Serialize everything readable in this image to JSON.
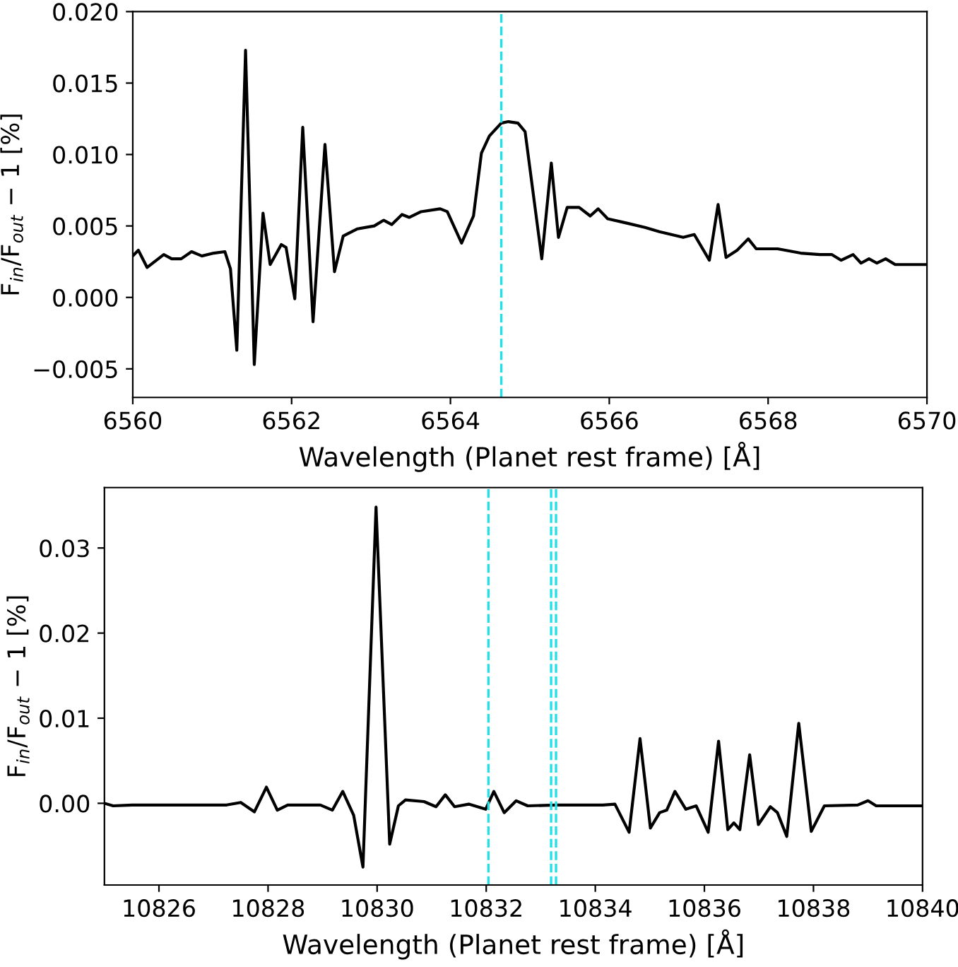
{
  "chart_data": [
    {
      "type": "line",
      "xlabel": "Wavelength (Planet rest frame) [Å]",
      "ylabel": "F$_{in}$/F$_{out}$ − 1 [%]",
      "x": [
        6560.0,
        6560.07,
        6560.18,
        6560.39,
        6560.49,
        6560.61,
        6560.74,
        6560.87,
        6561.02,
        6561.16,
        6561.23,
        6561.31,
        6561.42,
        6561.53,
        6561.64,
        6561.73,
        6561.87,
        6561.93,
        6562.04,
        6562.14,
        6562.27,
        6562.42,
        6562.54,
        6562.65,
        6562.83,
        6563.04,
        6563.16,
        6563.26,
        6563.39,
        6563.48,
        6563.63,
        6563.87,
        6563.96,
        6564.14,
        6564.29,
        6564.39,
        6564.49,
        6564.64,
        6564.73,
        6564.85,
        6564.94,
        6565.15,
        6565.27,
        6565.36,
        6565.47,
        6565.62,
        6565.76,
        6565.86,
        6565.98,
        6566.22,
        6566.45,
        6566.63,
        6566.93,
        6567.07,
        6567.26,
        6567.37,
        6567.47,
        6567.61,
        6567.75,
        6567.85,
        6568.12,
        6568.41,
        6568.65,
        6568.8,
        6568.92,
        6569.07,
        6569.17,
        6569.27,
        6569.37,
        6569.48,
        6569.6,
        6570.0
      ],
      "series": [
        {
          "color": "#000000",
          "values": [
            0.0029,
            0.0033,
            0.0021,
            0.003,
            0.0027,
            0.0027,
            0.0032,
            0.0029,
            0.0031,
            0.0032,
            0.002,
            -0.0037,
            0.0173,
            -0.0047,
            0.0059,
            0.0023,
            0.0037,
            0.0035,
            -0.0001,
            0.0119,
            -0.0017,
            0.0107,
            0.0018,
            0.0043,
            0.0048,
            0.005,
            0.0054,
            0.0051,
            0.0058,
            0.0056,
            0.006,
            0.0062,
            0.006,
            0.0038,
            0.0057,
            0.0101,
            0.0113,
            0.0122,
            0.0123,
            0.0122,
            0.0116,
            0.0027,
            0.0094,
            0.0042,
            0.0063,
            0.0063,
            0.0057,
            0.0062,
            0.0055,
            0.0052,
            0.0049,
            0.0046,
            0.0042,
            0.0044,
            0.0026,
            0.0065,
            0.0028,
            0.0033,
            0.0041,
            0.0034,
            0.0034,
            0.0031,
            0.003,
            0.003,
            0.0026,
            0.003,
            0.0024,
            0.0027,
            0.0024,
            0.0027,
            0.0023,
            0.0023
          ]
        }
      ],
      "xlim": [
        6560,
        6570
      ],
      "xticks": [
        6560,
        6562,
        6564,
        6566,
        6568,
        6570
      ],
      "ylim": [
        -0.007,
        0.02
      ],
      "yticks": [
        {
          "value": -0.005,
          "label": "−0.005"
        },
        {
          "value": 0,
          "label": "0.000"
        },
        {
          "value": 0.005,
          "label": "0.005"
        },
        {
          "value": 0.01,
          "label": "0.010"
        },
        {
          "value": 0.015,
          "label": "0.015"
        },
        {
          "value": 0.02,
          "label": "0.020"
        }
      ],
      "ref_lines": [
        {
          "axis": "x",
          "value": 6564.64,
          "color": "#22e0e8",
          "line_style": "dashed"
        }
      ],
      "grid": false,
      "legend": false
    },
    {
      "type": "line",
      "xlabel": "Wavelength (Planet rest frame) [Å]",
      "ylabel": "F$_{in}$/F$_{out}$ − 1 [%]",
      "x": [
        10825.0,
        10825.16,
        10825.51,
        10826.37,
        10827.24,
        10827.5,
        10827.75,
        10827.97,
        10828.17,
        10828.36,
        10828.96,
        10829.18,
        10829.37,
        10829.57,
        10829.74,
        10829.98,
        10830.23,
        10830.39,
        10830.52,
        10830.86,
        10831.08,
        10831.25,
        10831.42,
        10831.68,
        10831.99,
        10832.14,
        10832.33,
        10832.55,
        10832.76,
        10833.28,
        10834.14,
        10834.36,
        10834.62,
        10834.82,
        10835.01,
        10835.18,
        10835.31,
        10835.46,
        10835.66,
        10835.85,
        10836.07,
        10836.26,
        10836.43,
        10836.54,
        10836.65,
        10836.83,
        10836.99,
        10837.21,
        10837.34,
        10837.51,
        10837.73,
        10837.96,
        10838.2,
        10838.81,
        10839.0,
        10839.15,
        10840.0
      ],
      "series": [
        {
          "color": "#000000",
          "values": [
            0.0,
            -0.0003,
            -0.0002,
            -0.0002,
            -0.0002,
            0.0001,
            -0.001,
            0.0019,
            -0.0008,
            -0.0002,
            -0.0002,
            -0.0008,
            0.0014,
            -0.0014,
            -0.0075,
            0.0348,
            -0.0048,
            -0.0003,
            0.0004,
            0.0002,
            -0.0004,
            0.001,
            -0.0004,
            -0.0001,
            -0.0007,
            0.0014,
            -0.0011,
            0.0003,
            -0.0003,
            -0.0002,
            -0.0002,
            -0.0001,
            -0.0034,
            0.0076,
            -0.0029,
            -0.0011,
            -0.0008,
            0.0014,
            -0.0007,
            -0.0003,
            -0.0034,
            0.0073,
            -0.0031,
            -0.0023,
            -0.0031,
            0.0057,
            -0.0025,
            -0.0004,
            -0.0011,
            -0.0039,
            0.0094,
            -0.0033,
            -0.0003,
            -0.0002,
            0.0003,
            -0.0003,
            -0.0003
          ]
        }
      ],
      "xlim": [
        10825,
        10840
      ],
      "xticks": [
        10826,
        10828,
        10830,
        10832,
        10834,
        10836,
        10838,
        10840
      ],
      "ylim": [
        -0.0096,
        0.0371
      ],
      "yticks": [
        {
          "value": 0,
          "label": "0.00"
        },
        {
          "value": 0.01,
          "label": "0.01"
        },
        {
          "value": 0.02,
          "label": "0.02"
        },
        {
          "value": 0.03,
          "label": "0.03"
        }
      ],
      "ref_lines": [
        {
          "axis": "x",
          "value": 10832.04,
          "color": "#22e0e8",
          "line_style": "dashed"
        },
        {
          "axis": "x",
          "value": 10833.19,
          "color": "#22e0e8",
          "line_style": "dashed"
        },
        {
          "axis": "x",
          "value": 10833.28,
          "color": "#22e0e8",
          "line_style": "dashed"
        }
      ],
      "grid": false,
      "legend": false
    }
  ]
}
